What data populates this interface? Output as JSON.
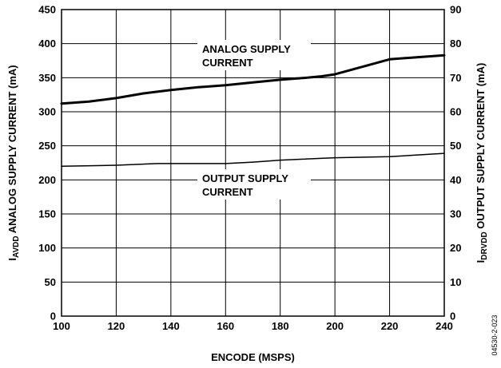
{
  "chart_data": {
    "type": "line",
    "xlabel": "ENCODE (MSPS)",
    "ylabel_left": {
      "main": "I",
      "sub": "AVDD",
      "rest": " ANALOG SUPPLY CURRENT (mA)"
    },
    "ylabel_right": {
      "main": "I",
      "sub": "DRVDD",
      "rest": " OUTPUT SUPPLY CURRENT (mA)"
    },
    "figure_id": "04530-2-023",
    "xlim": [
      100,
      240
    ],
    "ylim_left": [
      0,
      450
    ],
    "ylim_right": [
      0,
      90
    ],
    "x_ticks": [
      100,
      120,
      140,
      160,
      180,
      200,
      220,
      240
    ],
    "y_ticks_left": [
      0,
      50,
      100,
      150,
      200,
      250,
      300,
      350,
      400,
      450
    ],
    "y_ticks_right": [
      0,
      10,
      20,
      30,
      40,
      50,
      60,
      70,
      80,
      90
    ],
    "grid": true,
    "series": [
      {
        "name": "ANALOG SUPPLY CURRENT",
        "axis": "left",
        "color": "#000000",
        "line_weight": "thick",
        "x": [
          100,
          110,
          120,
          130,
          140,
          150,
          160,
          170,
          180,
          190,
          195,
          200,
          210,
          220,
          230,
          240
        ],
        "y": [
          312,
          315,
          320,
          327,
          332,
          336,
          339,
          343,
          347,
          350,
          352,
          355,
          366,
          377,
          380,
          383
        ]
      },
      {
        "name": "OUTPUT SUPPLY CURRENT",
        "axis": "right",
        "color": "#000000",
        "line_weight": "thin",
        "x": [
          100,
          120,
          135,
          160,
          170,
          180,
          200,
          220,
          240
        ],
        "y": [
          44,
          44.3,
          44.8,
          44.8,
          45.2,
          45.8,
          46.5,
          46.8,
          47.8
        ]
      }
    ],
    "annotations": [
      {
        "lines": [
          "ANALOG SUPPLY",
          "CURRENT"
        ],
        "series_index": 0
      },
      {
        "lines": [
          "OUTPUT SUPPLY",
          "CURRENT"
        ],
        "series_index": 1
      }
    ]
  }
}
